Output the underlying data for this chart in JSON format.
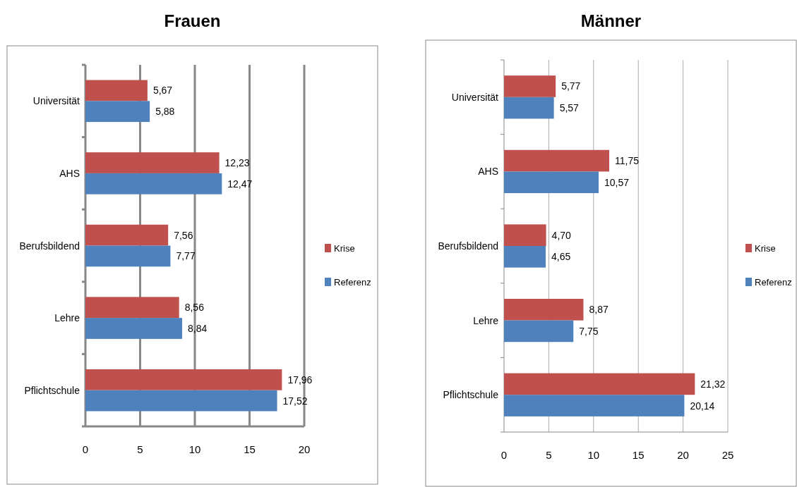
{
  "chart_data": [
    {
      "type": "bar",
      "orientation": "horizontal",
      "title": "Frauen",
      "categories": [
        "Universität",
        "AHS",
        "Berufsbildend",
        "Lehre",
        "Pflichtschule"
      ],
      "series": [
        {
          "name": "Krise",
          "color": "#c0504d",
          "values": [
            5.67,
            12.23,
            7.56,
            8.56,
            17.96
          ],
          "value_labels": [
            "5,67",
            "12,23",
            "7,56",
            "8,56",
            "17,96"
          ]
        },
        {
          "name": "Referenz",
          "color": "#4f81bd",
          "values": [
            5.88,
            12.47,
            7.77,
            8.84,
            17.52
          ],
          "value_labels": [
            "5,88",
            "12,47",
            "7,77",
            "8,84",
            "17,52"
          ]
        }
      ],
      "xlim": [
        0,
        20
      ],
      "xticks": [
        0,
        5,
        10,
        15,
        20
      ],
      "grid": "x",
      "legend": "right"
    },
    {
      "type": "bar",
      "orientation": "horizontal",
      "title": "Männer",
      "categories": [
        "Universität",
        "AHS",
        "Berufsbildend",
        "Lehre",
        "Pflichtschule"
      ],
      "series": [
        {
          "name": "Krise",
          "color": "#c0504d",
          "values": [
            5.77,
            11.75,
            4.7,
            8.87,
            21.32
          ],
          "value_labels": [
            "5,77",
            "11,75",
            "4,70",
            "8,87",
            "21,32"
          ]
        },
        {
          "name": "Referenz",
          "color": "#4f81bd",
          "values": [
            5.57,
            10.57,
            4.65,
            7.75,
            20.14
          ],
          "value_labels": [
            "5,57",
            "10,57",
            "4,65",
            "7,75",
            "20,14"
          ]
        }
      ],
      "xlim": [
        0,
        25
      ],
      "xticks": [
        0,
        5,
        10,
        15,
        20,
        25
      ],
      "grid": "x",
      "legend": "right"
    }
  ]
}
